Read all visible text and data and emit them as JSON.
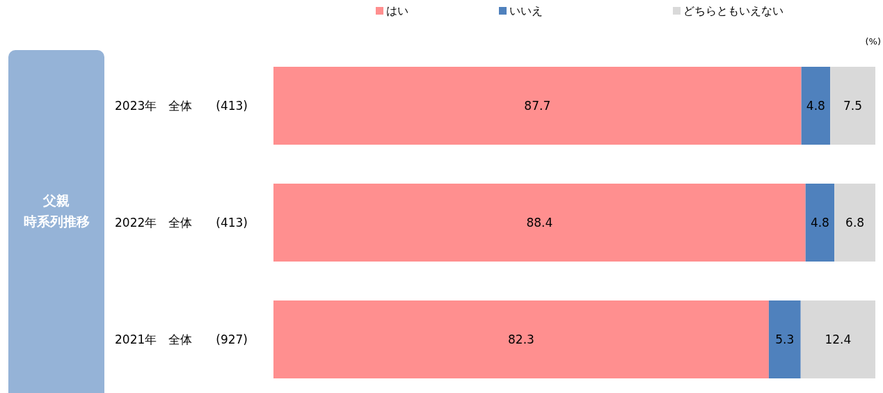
{
  "chart_data": {
    "type": "bar",
    "orientation": "horizontal",
    "stacked": true,
    "ylabel": "父親時系列推移",
    "categories": [
      "2023年　全体　　(413)",
      "2022年　全体　　(413)",
      "2021年　全体　　(927)"
    ],
    "series": [
      {
        "name": "はい",
        "color": "#ff8f8f",
        "values": [
          87.7,
          88.4,
          82.3
        ]
      },
      {
        "name": "いいえ",
        "color": "#4f81bd",
        "values": [
          4.8,
          4.8,
          5.3
        ]
      },
      {
        "name": "どちらともいえない",
        "color": "#d9d9d9",
        "values": [
          7.5,
          6.8,
          12.4
        ]
      }
    ],
    "xlim": [
      0,
      100
    ],
    "data_labels": true,
    "legend": "top",
    "annotations": [
      "(%)"
    ]
  }
}
